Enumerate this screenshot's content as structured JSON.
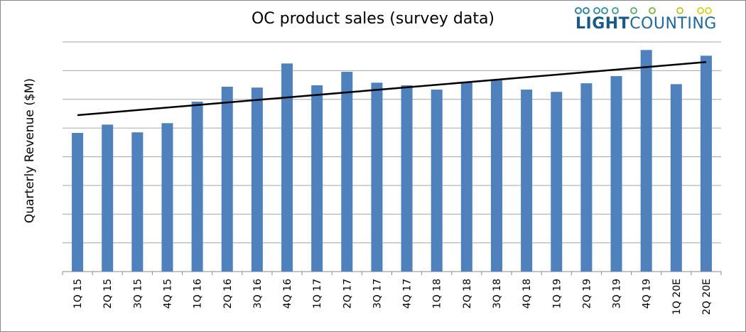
{
  "chart_data": {
    "type": "bar",
    "title": "OC product sales (survey data)",
    "xlabel": "",
    "ylabel": "Quarterly Revenue ($M)",
    "ylim": [
      0,
      8
    ],
    "y_tick_labels_shown": false,
    "grid": true,
    "legend": "none",
    "categories": [
      "1Q 15",
      "2Q 15",
      "3Q 15",
      "4Q 15",
      "1Q 16",
      "2Q 16",
      "3Q 16",
      "4Q 16",
      "1Q 17",
      "2Q 17",
      "3Q 17",
      "4Q 17",
      "1Q 18",
      "2Q 18",
      "3Q 18",
      "4Q 18",
      "1Q 19",
      "2Q 19",
      "3Q 19",
      "4Q 19",
      "1Q 20E",
      "2Q 20E"
    ],
    "values": [
      4.83,
      5.12,
      4.85,
      5.17,
      5.92,
      6.44,
      6.41,
      7.25,
      6.49,
      6.96,
      6.58,
      6.49,
      6.34,
      6.58,
      6.66,
      6.34,
      6.26,
      6.56,
      6.81,
      7.72,
      6.53,
      7.52
    ],
    "trendline": {
      "type": "linear",
      "start": 5.45,
      "end": 7.3,
      "color": "#000000"
    },
    "bar_color": "#4f81bd"
  },
  "logo": {
    "text_bold": "LIGHT",
    "text_regular": "COUNTING"
  }
}
